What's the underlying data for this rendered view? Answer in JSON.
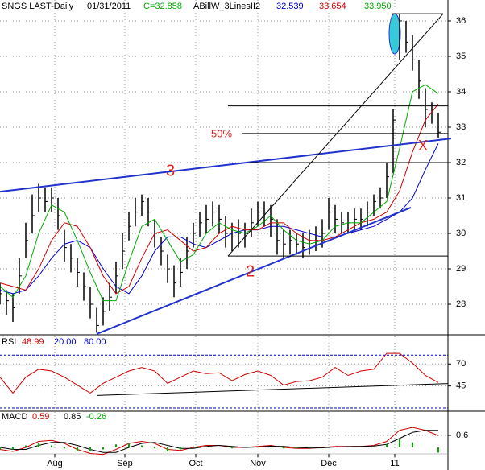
{
  "chart_data": [
    {
      "type": "ohlc",
      "title": "SNGS LAST-Daily",
      "date": "01/31/2011",
      "last": "C=32.858",
      "indicator": "ABillW_3LinesII2",
      "x": [
        0,
        2,
        4,
        6,
        8,
        10,
        12,
        14,
        16,
        18,
        20,
        22,
        24,
        26,
        28,
        30,
        32,
        34,
        36,
        38,
        40,
        42,
        44,
        46,
        48,
        50,
        52,
        54,
        56,
        58,
        60,
        62,
        64,
        66,
        68,
        70,
        72,
        74,
        76,
        78,
        80,
        82,
        84,
        86,
        88,
        90,
        92,
        94,
        96,
        98,
        100,
        102,
        104,
        106,
        108,
        110,
        112,
        114,
        116,
        118,
        120,
        122,
        124,
        126,
        128,
        130,
        132,
        134,
        136
      ],
      "high": [
        28.6,
        28.4,
        28.3,
        29.3,
        30.3,
        31.1,
        31.4,
        31.3,
        31.3,
        31.0,
        30.1,
        29.7,
        29.3,
        28.9,
        28.5,
        27.9,
        28.2,
        28.6,
        29.2,
        30.0,
        30.6,
        31.0,
        31.1,
        31.0,
        30.4,
        29.9,
        29.4,
        29.1,
        29.3,
        29.9,
        30.3,
        30.6,
        30.8,
        30.9,
        30.8,
        30.5,
        30.3,
        30.4,
        30.3,
        30.7,
        30.9,
        30.9,
        30.8,
        30.4,
        30.1,
        30.1,
        30.0,
        30.0,
        30.1,
        30.2,
        30.4,
        31.0,
        30.8,
        30.6,
        30.6,
        30.7,
        30.7,
        30.9,
        31.1,
        31.3,
        32.0,
        33.5,
        36.2,
        36.0,
        35.6,
        34.9,
        34.1,
        33.7,
        33.4
      ],
      "low": [
        28.0,
        27.7,
        27.5,
        28.3,
        29.3,
        30.0,
        30.6,
        30.6,
        30.6,
        30.1,
        29.2,
        28.9,
        28.5,
        28.1,
        27.6,
        27.2,
        27.4,
        27.8,
        28.3,
        29.0,
        29.8,
        30.2,
        30.5,
        30.2,
        29.6,
        29.1,
        28.6,
        28.2,
        28.5,
        29.0,
        29.6,
        29.9,
        30.0,
        30.2,
        30.0,
        29.6,
        29.5,
        29.6,
        29.6,
        29.9,
        30.2,
        30.2,
        29.9,
        29.4,
        29.3,
        29.4,
        29.4,
        29.3,
        29.4,
        29.5,
        29.6,
        30.1,
        30.0,
        30.0,
        30.0,
        30.1,
        30.1,
        30.2,
        30.5,
        30.7,
        31.0,
        31.7,
        34.9,
        35.1,
        34.6,
        33.8,
        33.0,
        33.1,
        32.7
      ],
      "close": [
        28.3,
        28.1,
        27.9,
        28.8,
        29.8,
        30.5,
        31.0,
        30.9,
        31.0,
        30.5,
        29.6,
        29.3,
        28.9,
        28.5,
        28.0,
        27.4,
        27.8,
        28.2,
        28.8,
        29.5,
        30.2,
        30.6,
        30.9,
        30.6,
        30.0,
        29.5,
        29.0,
        28.6,
        28.9,
        29.5,
        30.0,
        30.3,
        30.4,
        30.6,
        30.4,
        30.0,
        29.9,
        30.0,
        30.0,
        30.3,
        30.6,
        30.6,
        30.4,
        29.8,
        29.7,
        29.8,
        29.7,
        29.6,
        29.8,
        29.8,
        30.0,
        30.6,
        30.4,
        30.3,
        30.3,
        30.4,
        30.4,
        30.6,
        30.9,
        31.0,
        31.6,
        33.2,
        36.0,
        35.4,
        34.9,
        34.3,
        33.5,
        33.5,
        32.858
      ],
      "color": "#000000",
      "series": [
        {
          "name": "32.539",
          "color": "#0000cc",
          "x": [
            0,
            4,
            8,
            12,
            16,
            20,
            24,
            28,
            32,
            36,
            40,
            44,
            48,
            52,
            56,
            60,
            64,
            68,
            72,
            76,
            80,
            84,
            88,
            92,
            96,
            100,
            104,
            108,
            112,
            116,
            120,
            124,
            128,
            132,
            136
          ],
          "values": [
            28.4,
            28.3,
            28.4,
            28.8,
            29.3,
            29.7,
            29.8,
            29.6,
            29.0,
            28.5,
            28.3,
            28.8,
            29.5,
            29.9,
            29.9,
            29.7,
            29.6,
            29.8,
            30.0,
            30.1,
            30.1,
            30.2,
            30.2,
            30.1,
            30.0,
            29.9,
            29.9,
            30.0,
            30.1,
            30.2,
            30.4,
            30.6,
            31.0,
            31.8,
            32.539
          ]
        },
        {
          "name": "33.654",
          "color": "#cc0000",
          "x": [
            0,
            4,
            8,
            12,
            16,
            20,
            24,
            28,
            32,
            36,
            40,
            44,
            48,
            52,
            56,
            60,
            64,
            68,
            72,
            76,
            80,
            84,
            88,
            92,
            96,
            100,
            104,
            108,
            112,
            116,
            120,
            124,
            128,
            132,
            136
          ],
          "values": [
            28.6,
            28.5,
            28.4,
            29.0,
            29.8,
            30.3,
            30.2,
            29.6,
            28.8,
            28.3,
            28.5,
            29.3,
            30.0,
            30.1,
            29.8,
            29.5,
            29.6,
            30.0,
            30.2,
            30.1,
            30.1,
            30.3,
            30.3,
            30.0,
            29.8,
            29.8,
            29.9,
            30.1,
            30.3,
            30.4,
            30.6,
            31.2,
            32.3,
            33.2,
            33.654
          ]
        },
        {
          "name": "33.950",
          "color": "#00aa00",
          "x": [
            0,
            4,
            8,
            12,
            16,
            20,
            24,
            28,
            32,
            36,
            40,
            44,
            48,
            52,
            56,
            60,
            64,
            68,
            72,
            76,
            80,
            84,
            88,
            92,
            96,
            100,
            104,
            108,
            112,
            116,
            120,
            124,
            128,
            132,
            136
          ],
          "values": [
            28.5,
            28.2,
            28.8,
            30.0,
            30.8,
            30.6,
            29.8,
            28.9,
            28.1,
            28.1,
            29.2,
            30.2,
            30.4,
            29.8,
            29.2,
            29.4,
            30.0,
            30.3,
            30.1,
            30.0,
            30.2,
            30.5,
            30.1,
            29.8,
            29.7,
            29.8,
            30.2,
            30.3,
            30.3,
            30.6,
            30.9,
            32.4,
            34.0,
            34.2,
            33.95
          ]
        }
      ],
      "trendlines": [
        {
          "color": "#2233cc",
          "width": 2,
          "points": [
            [
              0,
              31.18
            ],
            [
              140,
              32.68
            ]
          ]
        },
        {
          "color": "#2233cc",
          "width": 2,
          "points": [
            [
              30,
              27.16
            ],
            [
              127.5,
              30.73
            ]
          ]
        },
        {
          "color": "#000000",
          "width": 1,
          "points": [
            [
              70.75,
              29.36
            ],
            [
              139,
              29.36
            ]
          ]
        },
        {
          "color": "#000000",
          "width": 1,
          "points": [
            [
              77.5,
              32.0
            ],
            [
              139,
              32.0
            ]
          ]
        },
        {
          "color": "#000000",
          "width": 1,
          "points": [
            [
              75,
              32.82
            ],
            [
              139,
              32.82
            ]
          ]
        },
        {
          "color": "#000000",
          "width": 1,
          "points": [
            [
              70.75,
              33.6
            ],
            [
              139,
              33.6
            ]
          ]
        },
        {
          "color": "#000000",
          "width": 1,
          "points": [
            [
              121.75,
              36.2
            ],
            [
              137.5,
              36.2
            ]
          ]
        },
        {
          "color": "#000000",
          "width": 1,
          "points": [
            [
              70.75,
              29.36
            ],
            [
              137.5,
              36.2
            ]
          ]
        }
      ],
      "annotations": [
        "3",
        "2",
        "50%",
        "X"
      ],
      "xlim": [
        0,
        139
      ],
      "xticks": [
        17,
        38.75,
        60.75,
        80,
        102,
        122.5
      ],
      "ylim": [
        27.16,
        36.59
      ],
      "yticks": [
        28,
        29,
        30,
        31,
        32,
        33,
        34,
        35,
        36
      ],
      "grid": true
    },
    {
      "type": "line",
      "title": "RSI",
      "x": [
        0,
        4,
        8,
        12,
        16,
        20,
        24,
        28,
        32,
        36,
        40,
        44,
        48,
        52,
        56,
        60,
        64,
        68,
        72,
        76,
        80,
        84,
        88,
        92,
        96,
        100,
        104,
        108,
        112,
        116,
        120,
        124,
        128,
        132,
        136
      ],
      "series": [
        {
          "name": "48.99",
          "color": "#cc0000",
          "values": [
            55,
            37,
            55,
            64,
            62,
            55,
            46,
            37,
            48,
            55,
            62,
            66,
            62,
            48,
            55,
            62,
            59,
            60,
            51,
            58,
            62,
            57,
            46,
            50,
            51,
            55,
            66,
            57,
            62,
            64,
            82,
            82,
            71,
            57,
            48.99
          ]
        }
      ],
      "levels": [
        {
          "value": 20,
          "label": "20.00",
          "color": "#0000cc"
        },
        {
          "value": 80,
          "label": "80.00",
          "color": "#0000cc"
        }
      ],
      "trendlines": [
        {
          "color": "#000000",
          "width": 1,
          "points": [
            [
              30,
              34.3
            ],
            [
              139,
              47.7
            ]
          ]
        }
      ],
      "xlim": [
        0,
        139
      ],
      "xticks": [
        17,
        38.75,
        60.75,
        80,
        102,
        122.5
      ],
      "ylim": [
        17.3,
        101.25
      ],
      "yticks": [
        45,
        70
      ],
      "grid": true
    },
    {
      "type": "line",
      "title": "MACD",
      "x": [
        0,
        4,
        8,
        12,
        16,
        20,
        24,
        28,
        32,
        36,
        40,
        44,
        48,
        52,
        56,
        60,
        64,
        68,
        72,
        76,
        80,
        84,
        88,
        92,
        96,
        100,
        104,
        108,
        112,
        116,
        120,
        124,
        128,
        132,
        136
      ],
      "series": [
        {
          "name": "0.59",
          "color": "#cc0000",
          "values": [
            -0.1,
            -0.2,
            0.0,
            0.3,
            0.35,
            0.2,
            -0.1,
            -0.3,
            -0.35,
            -0.1,
            0.2,
            0.3,
            0.2,
            -0.1,
            -0.15,
            0.0,
            0.1,
            0.1,
            0.0,
            0.0,
            0.05,
            0.1,
            0.0,
            -0.05,
            -0.05,
            0.0,
            0.05,
            0.05,
            0.05,
            0.1,
            0.3,
            0.85,
            1.0,
            0.85,
            0.59
          ]
        },
        {
          "name": "0.85",
          "color": "#000000",
          "values": [
            0.0,
            -0.1,
            -0.1,
            0.1,
            0.25,
            0.25,
            0.1,
            -0.1,
            -0.25,
            -0.25,
            0.0,
            0.2,
            0.25,
            0.1,
            -0.05,
            -0.05,
            0.05,
            0.1,
            0.05,
            0.0,
            0.02,
            0.06,
            0.05,
            0.0,
            -0.03,
            -0.02,
            0.02,
            0.04,
            0.05,
            0.07,
            0.15,
            0.45,
            0.75,
            0.85,
            0.85
          ]
        },
        {
          "name": "-0.26",
          "color": "#00aa00",
          "style": "bar",
          "values": [
            -0.1,
            -0.1,
            0.1,
            0.2,
            0.1,
            -0.05,
            -0.2,
            -0.2,
            -0.1,
            0.15,
            0.2,
            0.1,
            -0.05,
            -0.2,
            -0.1,
            0.05,
            0.05,
            0,
            -0.05,
            0,
            0.03,
            0.04,
            -0.05,
            -0.05,
            -0.02,
            0.02,
            0.03,
            0.01,
            0,
            0.03,
            0.15,
            0.4,
            0.25,
            0,
            -0.26
          ]
        }
      ],
      "xlim": [
        0,
        139
      ],
      "xticks": [
        {
          "value": 17,
          "label": "Aug"
        },
        {
          "value": 38.75,
          "label": "Sep"
        },
        {
          "value": 60.75,
          "label": "Oct"
        },
        {
          "value": 80,
          "label": "Nov"
        },
        {
          "value": 102,
          "label": "Dec"
        },
        {
          "value": 122.5,
          "label": "11"
        }
      ],
      "ylim": [
        -0.88,
        1.76
      ],
      "yticks": [
        0.6
      ],
      "grid": true
    }
  ]
}
